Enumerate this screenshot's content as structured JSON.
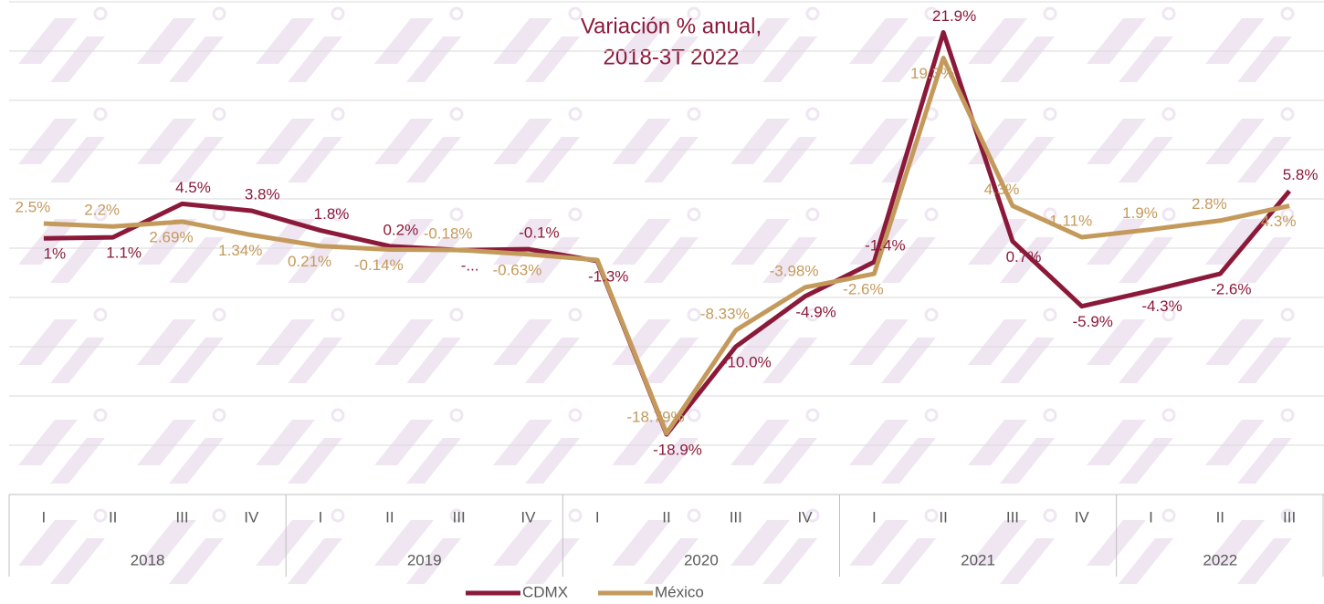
{
  "chart_data": {
    "type": "line",
    "title": [
      "Variación % anual,",
      "2018-3T 2022"
    ],
    "category_groups": [
      {
        "label": "2018",
        "categories": [
          "I",
          "II",
          "III",
          "IV"
        ]
      },
      {
        "label": "2019",
        "categories": [
          "I",
          "II",
          "III",
          "IV"
        ]
      },
      {
        "label": "2020",
        "categories": [
          "I",
          "II",
          "III",
          "IV"
        ]
      },
      {
        "label": "2021",
        "categories": [
          "I",
          "II",
          "III",
          "IV"
        ]
      },
      {
        "label": "2022",
        "categories": [
          "I",
          "II",
          "III"
        ]
      }
    ],
    "series": [
      {
        "name": "CDMX",
        "color": "#8b1a3a",
        "values": [
          1.0,
          1.1,
          4.5,
          3.8,
          1.8,
          0.2,
          -0.2,
          -0.1,
          -1.3,
          -18.9,
          -10.0,
          -4.9,
          -1.4,
          21.9,
          0.7,
          -5.9,
          -4.3,
          -2.6,
          5.8
        ],
        "value_labels": [
          "1%",
          "1.1%",
          "4.5%",
          "3.8%",
          "1.8%",
          "0.2%",
          "-...",
          "-0.1%",
          "-1.3%",
          "-18.9%",
          "-10.0%",
          "-4.9%",
          "-1.4%",
          "21.9%",
          "0.7%",
          "-5.9%",
          "-4.3%",
          "-2.6%",
          "5.8%"
        ]
      },
      {
        "name": "México",
        "color": "#c49a5c",
        "values": [
          2.5,
          2.2,
          2.69,
          1.34,
          0.21,
          -0.14,
          -0.18,
          -0.63,
          -1.2,
          -18.79,
          -8.33,
          -3.98,
          -2.6,
          19.3,
          4.3,
          1.11,
          1.9,
          2.8,
          4.3
        ],
        "value_labels": [
          "2.5%",
          "2.2%",
          "2.69%",
          "1.34%",
          "0.21%",
          "-0.14%",
          "-0.18%",
          "-0.63%",
          null,
          "-18.79%",
          "-8.33%",
          "-3.98%",
          "-2.6%",
          "19.3%",
          "4.3%",
          "1.11%",
          "1.9%",
          "2.8%",
          "4.3%"
        ]
      }
    ],
    "ylim": [
      -25,
      25
    ],
    "yticks": [
      -25,
      -20,
      -15,
      -10,
      -5,
      0,
      5,
      10,
      15,
      20,
      25
    ],
    "grid": true,
    "legend": "bottom"
  }
}
